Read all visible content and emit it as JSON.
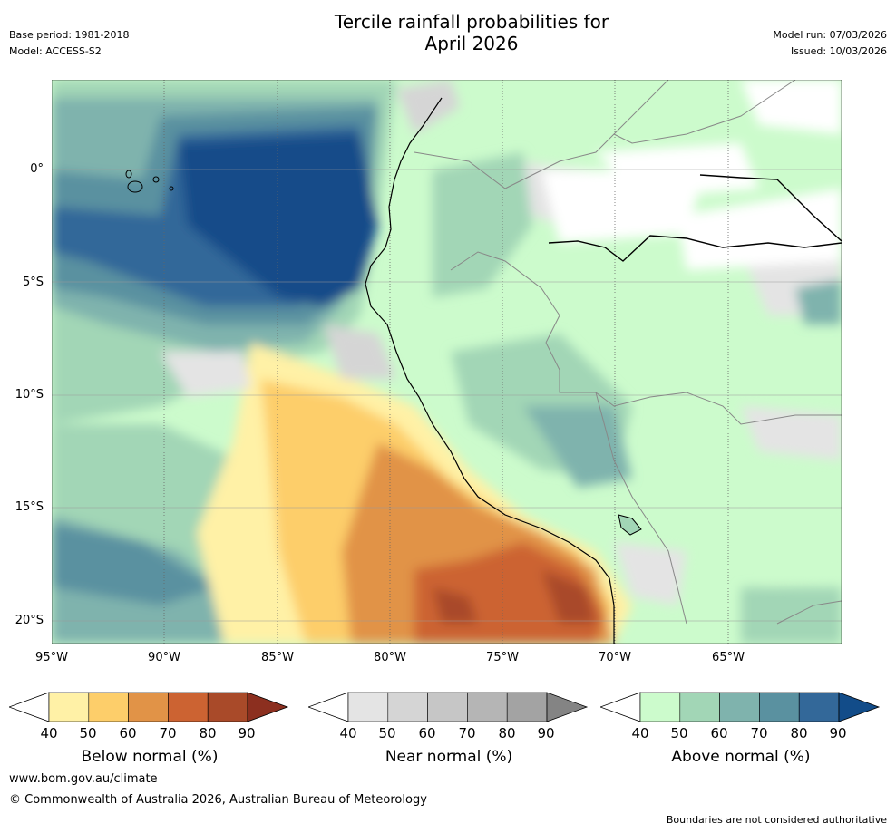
{
  "header": {
    "title_line1": "Tercile rainfall probabilities for",
    "title_line2": "April 2026",
    "base_period": "Base period: 1981-2018",
    "model": "Model: ACCESS-S2",
    "model_run": "Model run: 07/03/2026",
    "issued": "Issued: 10/03/2026"
  },
  "axes": {
    "lat_labels": [
      "0°",
      "5°S",
      "10°S",
      "15°S",
      "20°S"
    ],
    "lon_labels": [
      "95°W",
      "90°W",
      "85°W",
      "80°W",
      "75°W",
      "70°W",
      "65°W"
    ]
  },
  "legends": {
    "below": {
      "caption": "Below normal (%)",
      "ticks": [
        "40",
        "50",
        "60",
        "70",
        "80",
        "90"
      ],
      "colors": [
        "#fff1a6",
        "#fdce6a",
        "#e19347",
        "#cc6332",
        "#a94a29",
        "#8c2f1f"
      ]
    },
    "near": {
      "caption": "Near normal (%)",
      "ticks": [
        "40",
        "50",
        "60",
        "70",
        "80",
        "90"
      ],
      "colors": [
        "#e4e4e4",
        "#d5d5d5",
        "#c6c6c6",
        "#b5b5b5",
        "#a3a3a3",
        "#848484"
      ]
    },
    "above": {
      "caption": "Above normal (%)",
      "ticks": [
        "40",
        "50",
        "60",
        "70",
        "80",
        "90"
      ],
      "colors": [
        "#ccfbcc",
        "#a2d6b6",
        "#7fb3ad",
        "#5a91a0",
        "#336899",
        "#124c89"
      ]
    }
  },
  "footer": {
    "website": "www.bom.gov.au/climate",
    "copyright": "© Commonwealth of Australia 2026, Australian Bureau of Meteorology",
    "disclaimer": "Boundaries are not considered authoritative"
  }
}
